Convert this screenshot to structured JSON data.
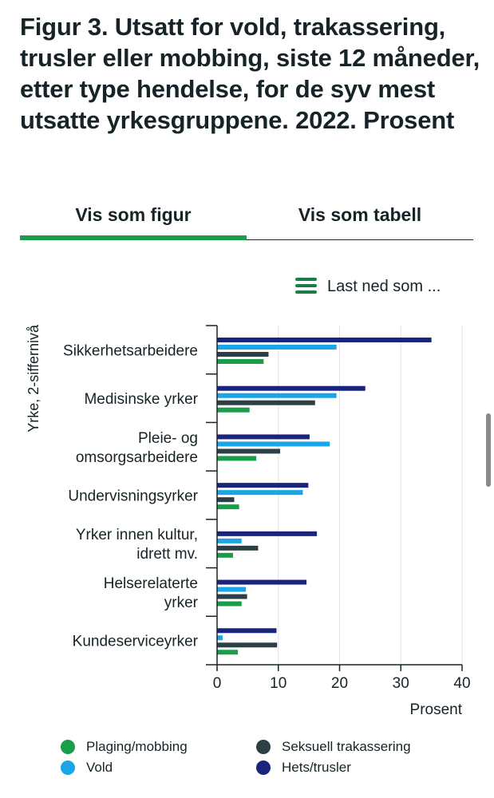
{
  "page": {
    "title": "Figur 3. Utsatt for vold, trakassering, trusler eller mobbing, siste 12 måneder, etter type hendelse, for de syv mest utsatte yrkesgruppene. 2022. Prosent",
    "tabs": {
      "figure": "Vis som figur",
      "table": "Vis som tabell"
    },
    "download_label": "Last ned som ..."
  },
  "colors": {
    "accent_green": "#1a9d49",
    "plaging": "#1a9d49",
    "vold": "#1aa5e6",
    "seksuell": "#2b3f45",
    "hets": "#1a237e"
  },
  "chart_data": {
    "type": "bar",
    "orientation": "horizontal",
    "title": "",
    "xlabel": "Prosent",
    "ylabel": "Yrke, 2-siffernivå",
    "xlim": [
      0,
      40
    ],
    "xticks": [
      0,
      10,
      20,
      30,
      40
    ],
    "grid": true,
    "legend_position": "bottom",
    "categories": [
      [
        "Sikkerhetsarbeidere"
      ],
      [
        "Medisinske yrker"
      ],
      [
        "Pleie- og",
        "omsorgsarbeidere"
      ],
      [
        "Undervisningsyrker"
      ],
      [
        "Yrker innen kultur,",
        "idrett mv."
      ],
      [
        "Helserelaterte",
        "yrker"
      ],
      [
        "Kundeserviceyrker"
      ]
    ],
    "series": [
      {
        "name": "Hets/trusler",
        "color": "#1a237e",
        "values": [
          35.0,
          24.2,
          15.1,
          14.9,
          16.3,
          14.6,
          9.7
        ]
      },
      {
        "name": "Vold",
        "color": "#1aa5e6",
        "values": [
          19.5,
          19.5,
          18.4,
          14.0,
          4.0,
          4.7,
          0.9
        ]
      },
      {
        "name": "Seksuell trakassering",
        "color": "#2b3f45",
        "values": [
          8.4,
          16.0,
          10.3,
          2.8,
          6.7,
          4.9,
          9.8
        ]
      },
      {
        "name": "Plaging/mobbing",
        "color": "#1a9d49",
        "values": [
          7.6,
          5.3,
          6.4,
          3.6,
          2.6,
          4.0,
          3.4
        ]
      }
    ],
    "legend": [
      {
        "name": "Plaging/mobbing",
        "color": "#1a9d49"
      },
      {
        "name": "Seksuell trakassering",
        "color": "#2b3f45"
      },
      {
        "name": "Vold",
        "color": "#1aa5e6"
      },
      {
        "name": "Hets/trusler",
        "color": "#1a237e"
      }
    ]
  }
}
